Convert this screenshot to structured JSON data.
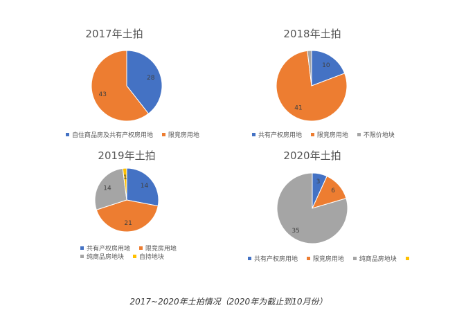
{
  "caption": "2017~2020年土拍情况（2020年为截止到10月份）",
  "colors": {
    "blue": "#4472C4",
    "orange": "#ED7D31",
    "gray": "#A5A5A5",
    "yellow": "#FFC000"
  },
  "chart_data": [
    {
      "type": "pie",
      "title": "2017年土拍",
      "categories": [
        "自住商品房及共有产权房用地",
        "限竞房用地"
      ],
      "values": [
        28,
        43
      ],
      "labels": [
        "28",
        "43"
      ],
      "colors": [
        "#4472C4",
        "#ED7D31"
      ],
      "legend_position": "bottom"
    },
    {
      "type": "pie",
      "title": "2018年土拍",
      "categories": [
        "共有产权房用地",
        "限竞房用地",
        "不限价地块"
      ],
      "values": [
        10,
        41,
        1
      ],
      "labels": [
        "10",
        "41",
        ""
      ],
      "colors": [
        "#4472C4",
        "#ED7D31",
        "#A5A5A5"
      ],
      "legend_position": "bottom"
    },
    {
      "type": "pie",
      "title": "2019年土拍",
      "categories": [
        "共有产权房用地",
        "限竞房用地",
        "纯商品房地块",
        "自持地块"
      ],
      "values": [
        14,
        21,
        14,
        1
      ],
      "labels": [
        "14",
        "21",
        "14",
        "1"
      ],
      "colors": [
        "#4472C4",
        "#ED7D31",
        "#A5A5A5",
        "#FFC000"
      ],
      "legend_position": "bottom"
    },
    {
      "type": "pie",
      "title": "2020年土拍",
      "categories": [
        "共有产权房用地",
        "限竞房用地",
        "纯商品房地块",
        ""
      ],
      "values": [
        3,
        6,
        35,
        0
      ],
      "labels": [
        "3",
        "6",
        "35",
        ""
      ],
      "colors": [
        "#4472C4",
        "#ED7D31",
        "#A5A5A5",
        "#FFC000"
      ],
      "legend_position": "bottom"
    }
  ]
}
